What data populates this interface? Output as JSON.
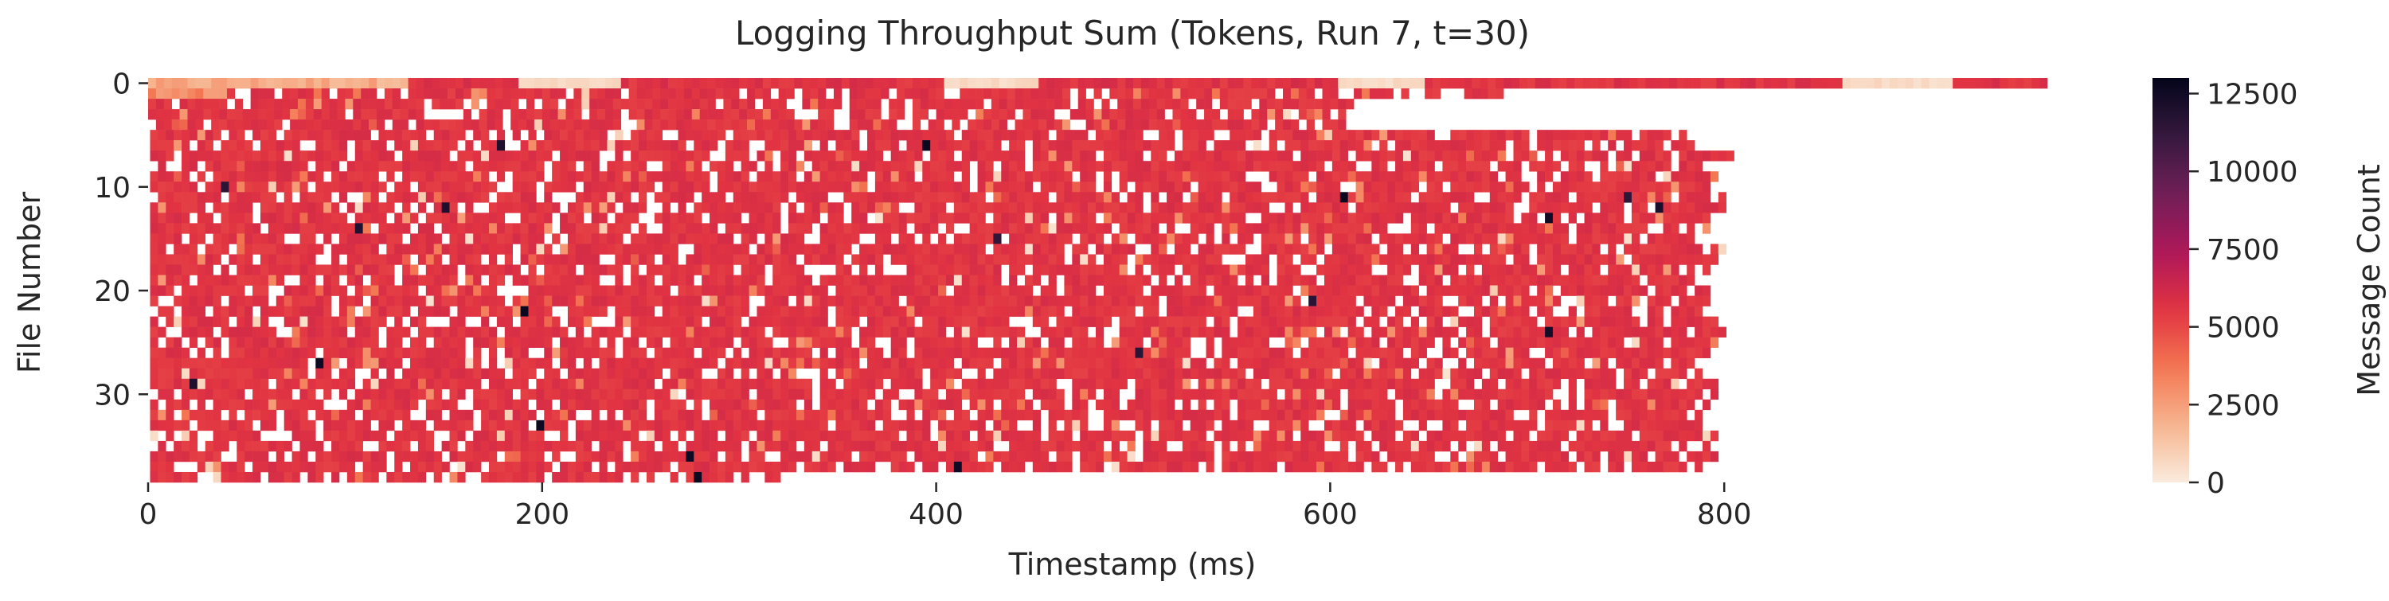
{
  "chart_data": {
    "type": "heatmap",
    "title": "Logging Throughput Sum (Tokens, Run 7, t=30)",
    "xlabel": "Timestamp (ms)",
    "ylabel": "File Number",
    "colorbar_label": "Message Count",
    "xlim": [
      0,
      1000
    ],
    "ylim": [
      0,
      39
    ],
    "x_ticks": [
      0,
      200,
      400,
      600,
      800
    ],
    "x_tick_labels": [
      "0",
      "200",
      "400",
      "600",
      "800"
    ],
    "y_ticks": [
      0,
      10,
      20,
      30
    ],
    "y_tick_labels": [
      "0",
      "10",
      "20",
      "30"
    ],
    "color_range": [
      0,
      13000
    ],
    "colorbar_ticks": [
      0,
      2500,
      5000,
      7500,
      10000,
      12500
    ],
    "colorbar_tick_labels": [
      "0",
      "2500",
      "5000",
      "7500",
      "10000",
      "12500"
    ],
    "colormap": "rocket_r",
    "colormap_stops": [
      "#faebdd",
      "#f6b48f",
      "#f37651",
      "#e13342",
      "#ad1759",
      "#701f57",
      "#35193e",
      "#03051a"
    ],
    "grid": false,
    "rows": [
      {
        "file": 0,
        "end_ms": 962
      },
      {
        "file": 1,
        "end_ms": 685
      },
      {
        "file": 2,
        "end_ms": 611
      },
      {
        "file": 3,
        "end_ms": 608
      },
      {
        "file": 4,
        "end_ms": 610
      },
      {
        "file": 5,
        "end_ms": 778
      },
      {
        "file": 6,
        "end_ms": 782
      },
      {
        "file": 7,
        "end_ms": 805
      },
      {
        "file": 8,
        "end_ms": 786
      },
      {
        "file": 9,
        "end_ms": 794
      },
      {
        "file": 10,
        "end_ms": 790
      },
      {
        "file": 11,
        "end_ms": 800
      },
      {
        "file": 12,
        "end_ms": 798
      },
      {
        "file": 13,
        "end_ms": 792
      },
      {
        "file": 14,
        "end_ms": 795
      },
      {
        "file": 15,
        "end_ms": 788
      },
      {
        "file": 16,
        "end_ms": 801
      },
      {
        "file": 17,
        "end_ms": 796
      },
      {
        "file": 18,
        "end_ms": 790
      },
      {
        "file": 19,
        "end_ms": 785
      },
      {
        "file": 20,
        "end_ms": 793
      },
      {
        "file": 21,
        "end_ms": 791
      },
      {
        "file": 22,
        "end_ms": 787
      },
      {
        "file": 23,
        "end_ms": 795
      },
      {
        "file": 24,
        "end_ms": 799
      },
      {
        "file": 25,
        "end_ms": 797
      },
      {
        "file": 26,
        "end_ms": 793
      },
      {
        "file": 27,
        "end_ms": 785
      },
      {
        "file": 28,
        "end_ms": 790
      },
      {
        "file": 29,
        "end_ms": 796
      },
      {
        "file": 30,
        "end_ms": 794
      },
      {
        "file": 31,
        "end_ms": 790
      },
      {
        "file": 32,
        "end_ms": 786
      },
      {
        "file": 33,
        "end_ms": 789
      },
      {
        "file": 34,
        "end_ms": 794
      },
      {
        "file": 35,
        "end_ms": 792
      },
      {
        "file": 36,
        "end_ms": 795
      },
      {
        "file": 37,
        "end_ms": 792
      },
      {
        "file": 38,
        "end_ms": 318
      }
    ],
    "typical_value": 5600,
    "top_row_values_note_range": [
      500,
      6000
    ],
    "peak_value": 12800
  }
}
